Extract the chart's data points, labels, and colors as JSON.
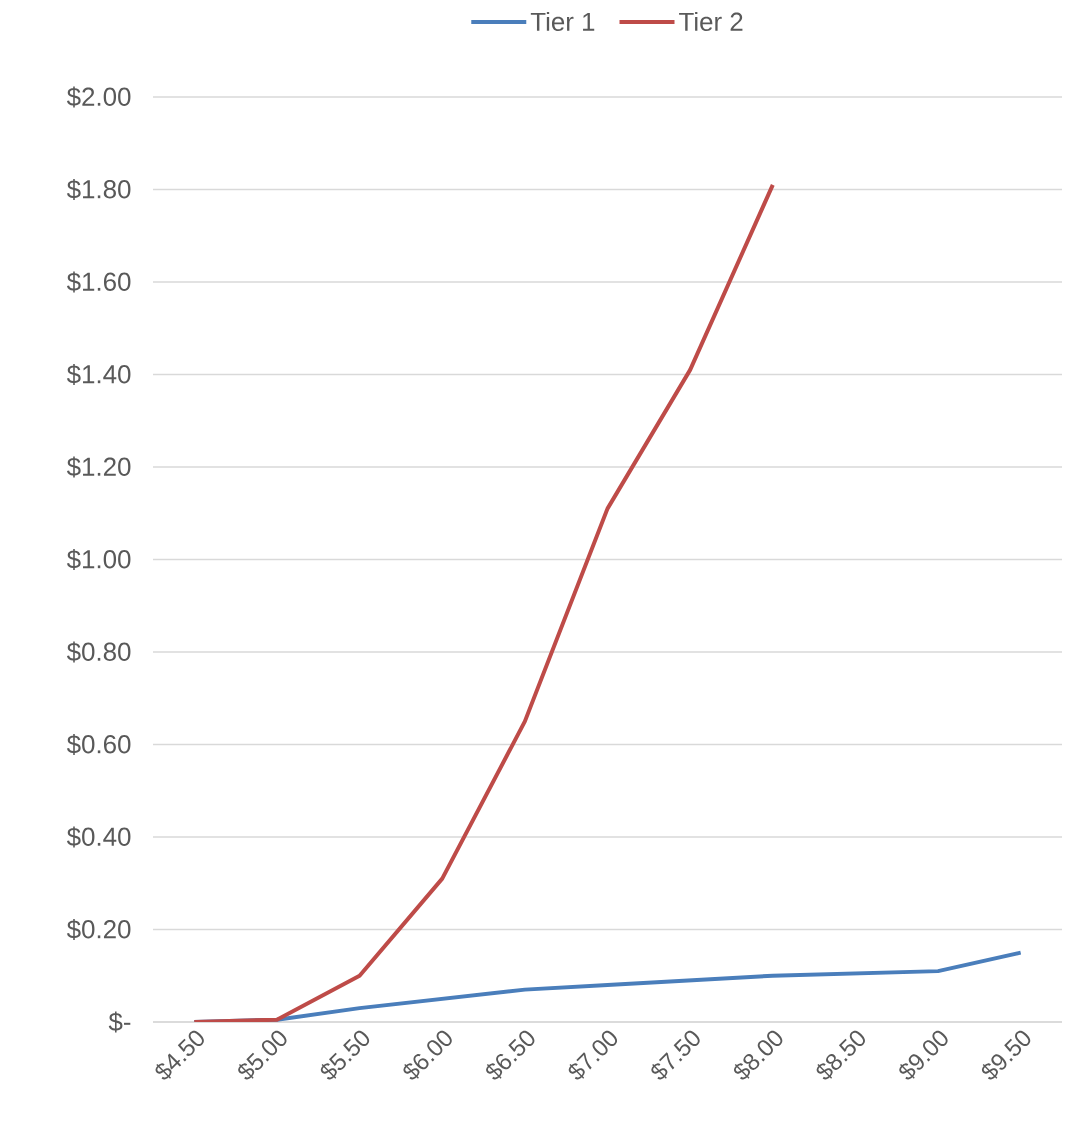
{
  "chart_data": {
    "type": "line",
    "categories": [
      "$4.50",
      "$5.00",
      "$5.50",
      "$6.00",
      "$6.50",
      "$7.00",
      "$7.50",
      "$8.00",
      "$8.50",
      "$9.00",
      "$9.50"
    ],
    "series": [
      {
        "name": "Tier 1",
        "color": "#4a7ebb",
        "values": [
          0.0,
          0.005,
          0.03,
          0.05,
          0.07,
          0.08,
          0.09,
          0.1,
          0.105,
          0.11,
          0.15
        ]
      },
      {
        "name": "Tier 2",
        "color": "#be4b48",
        "values": [
          0.0,
          0.005,
          0.1,
          0.31,
          0.65,
          1.11,
          1.41,
          1.81,
          null,
          null,
          null
        ]
      }
    ],
    "ylim": [
      0,
      2.0
    ],
    "yticks": [
      {
        "value": 0,
        "label": "$-"
      },
      {
        "value": 0.2,
        "label": "$0.20"
      },
      {
        "value": 0.4,
        "label": "$0.40"
      },
      {
        "value": 0.6,
        "label": "$0.60"
      },
      {
        "value": 0.8,
        "label": "$0.80"
      },
      {
        "value": 1.0,
        "label": "$1.00"
      },
      {
        "value": 1.2,
        "label": "$1.20"
      },
      {
        "value": 1.4,
        "label": "$1.40"
      },
      {
        "value": 1.6,
        "label": "$1.60"
      },
      {
        "value": 1.8,
        "label": "$1.80"
      },
      {
        "value": 2.0,
        "label": "$2.00"
      }
    ],
    "grid": "y",
    "legend": "top"
  }
}
